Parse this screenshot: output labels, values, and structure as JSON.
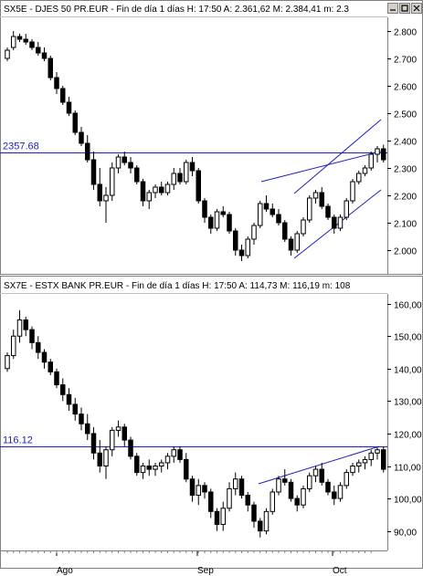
{
  "chart_data": [
    {
      "type": "candlestick",
      "title": "SX5E - DJES 50 PR.EUR - Fin de día 1 días H: 17:50 A: 2.361,62 M: 2.384,41 m: 2.3",
      "y_ticks": [
        "2.800",
        "2.700",
        "2.600",
        "2.500",
        "2.400",
        "2.300",
        "2.200",
        "2.100",
        "2.000"
      ],
      "y_tick_values": [
        2800,
        2700,
        2600,
        2500,
        2400,
        2300,
        2200,
        2100,
        2000
      ],
      "ylim": [
        1920,
        2850
      ],
      "reference_line": {
        "value": 2357.68,
        "label": "2357.68"
      },
      "series": [
        {
          "values": [
            [
              2700,
              2740,
              2690,
              2730
            ],
            [
              2740,
              2800,
              2730,
              2780
            ],
            [
              2780,
              2790,
              2760,
              2770
            ],
            [
              2770,
              2790,
              2750,
              2760
            ],
            [
              2760,
              2770,
              2730,
              2740
            ],
            [
              2740,
              2760,
              2710,
              2720
            ],
            [
              2720,
              2740,
              2690,
              2700
            ],
            [
              2700,
              2710,
              2620,
              2630
            ],
            [
              2630,
              2650,
              2570,
              2590
            ],
            [
              2590,
              2600,
              2530,
              2540
            ],
            [
              2540,
              2560,
              2490,
              2500
            ],
            [
              2500,
              2510,
              2420,
              2430
            ],
            [
              2430,
              2450,
              2380,
              2390
            ],
            [
              2390,
              2420,
              2320,
              2330
            ],
            [
              2330,
              2360,
              2220,
              2240
            ],
            [
              2240,
              2300,
              2160,
              2180
            ],
            [
              2180,
              2230,
              2100,
              2200
            ],
            [
              2200,
              2320,
              2180,
              2300
            ],
            [
              2300,
              2350,
              2280,
              2340
            ],
            [
              2340,
              2360,
              2310,
              2320
            ],
            [
              2320,
              2340,
              2280,
              2300
            ],
            [
              2300,
              2310,
              2240,
              2250
            ],
            [
              2250,
              2260,
              2160,
              2180
            ],
            [
              2180,
              2220,
              2150,
              2210
            ],
            [
              2210,
              2240,
              2190,
              2230
            ],
            [
              2230,
              2250,
              2200,
              2210
            ],
            [
              2210,
              2250,
              2200,
              2240
            ],
            [
              2240,
              2300,
              2220,
              2280
            ],
            [
              2280,
              2300,
              2240,
              2250
            ],
            [
              2250,
              2330,
              2240,
              2320
            ],
            [
              2320,
              2340,
              2270,
              2290
            ],
            [
              2290,
              2300,
              2170,
              2180
            ],
            [
              2180,
              2190,
              2100,
              2120
            ],
            [
              2120,
              2130,
              2060,
              2080
            ],
            [
              2080,
              2150,
              2070,
              2140
            ],
            [
              2140,
              2160,
              2120,
              2130
            ],
            [
              2130,
              2140,
              2060,
              2070
            ],
            [
              2070,
              2080,
              1980,
              2000
            ],
            [
              2000,
              2020,
              1960,
              1980
            ],
            [
              1980,
              2050,
              1970,
              2040
            ],
            [
              2040,
              2100,
              2020,
              2090
            ],
            [
              2090,
              2180,
              2080,
              2170
            ],
            [
              2170,
              2200,
              2140,
              2150
            ],
            [
              2150,
              2170,
              2120,
              2130
            ],
            [
              2130,
              2150,
              2090,
              2100
            ],
            [
              2100,
              2110,
              2030,
              2040
            ],
            [
              2040,
              2050,
              1980,
              2000
            ],
            [
              2000,
              2070,
              1990,
              2060
            ],
            [
              2060,
              2120,
              2050,
              2110
            ],
            [
              2110,
              2200,
              2100,
              2190
            ],
            [
              2190,
              2220,
              2170,
              2210
            ],
            [
              2210,
              2230,
              2150,
              2160
            ],
            [
              2160,
              2170,
              2110,
              2120
            ],
            [
              2120,
              2130,
              2060,
              2080
            ],
            [
              2080,
              2130,
              2070,
              2120
            ],
            [
              2120,
              2190,
              2110,
              2180
            ],
            [
              2180,
              2260,
              2170,
              2250
            ],
            [
              2250,
              2290,
              2240,
              2280
            ],
            [
              2280,
              2310,
              2270,
              2300
            ],
            [
              2300,
              2360,
              2290,
              2350
            ],
            [
              2350,
              2380,
              2320,
              2370
            ],
            [
              2370,
              2385,
              2320,
              2330
            ]
          ]
        }
      ]
    },
    {
      "type": "candlestick",
      "title": "SX7E - ESTX BANK PR.EUR - Fin de día 1 días H: 17:50 A: 114,73 M: 116,19 m: 108",
      "y_ticks": [
        "160,00",
        "150,00",
        "140,00",
        "130,00",
        "120,00",
        "110,00",
        "100,00",
        "90,00"
      ],
      "y_tick_values": [
        160,
        150,
        140,
        130,
        120,
        110,
        100,
        90
      ],
      "ylim": [
        84,
        163
      ],
      "reference_line": {
        "value": 116.12,
        "label": "116.12"
      },
      "x_tick_labels": [
        "Ago",
        "Sep",
        "Oct"
      ],
      "series": [
        {
          "values": [
            [
              140,
              145,
              139,
              144
            ],
            [
              144,
              152,
              143,
              150
            ],
            [
              150,
              158,
              148,
              155
            ],
            [
              155,
              156,
              150,
              152
            ],
            [
              152,
              153,
              146,
              148
            ],
            [
              148,
              150,
              143,
              145
            ],
            [
              145,
              146,
              140,
              142
            ],
            [
              142,
              143,
              138,
              139
            ],
            [
              139,
              140,
              134,
              135
            ],
            [
              135,
              137,
              130,
              132
            ],
            [
              132,
              134,
              127,
              129
            ],
            [
              129,
              131,
              124,
              126
            ],
            [
              126,
              128,
              121,
              123
            ],
            [
              123,
              126,
              118,
              120
            ],
            [
              120,
              122,
              112,
              114
            ],
            [
              114,
              118,
              108,
              110
            ],
            [
              110,
              116,
              106,
              115
            ],
            [
              115,
              122,
              113,
              121
            ],
            [
              121,
              124,
              119,
              122
            ],
            [
              122,
              123,
              116,
              118
            ],
            [
              118,
              119,
              112,
              113
            ],
            [
              113,
              114,
              107,
              108
            ],
            [
              108,
              111,
              106,
              110
            ],
            [
              110,
              112,
              107,
              109
            ],
            [
              109,
              111,
              107,
              110
            ],
            [
              110,
              112,
              108,
              111
            ],
            [
              111,
              114,
              109,
              113
            ],
            [
              113,
              116,
              111,
              115
            ],
            [
              115,
              116,
              111,
              112
            ],
            [
              112,
              114,
              105,
              106
            ],
            [
              106,
              107,
              99,
              101
            ],
            [
              101,
              106,
              98,
              104
            ],
            [
              104,
              105,
              100,
              102
            ],
            [
              102,
              103,
              94,
              96
            ],
            [
              96,
              97,
              90,
              92
            ],
            [
              92,
              99,
              90,
              97
            ],
            [
              97,
              105,
              96,
              103
            ],
            [
              103,
              108,
              101,
              106
            ],
            [
              106,
              107,
              100,
              101
            ],
            [
              101,
              102,
              96,
              98
            ],
            [
              98,
              99,
              91,
              93
            ],
            [
              93,
              94,
              88,
              90
            ],
            [
              90,
              97,
              89,
              96
            ],
            [
              96,
              103,
              95,
              102
            ],
            [
              102,
              107,
              101,
              106
            ],
            [
              106,
              109,
              104,
              105
            ],
            [
              105,
              106,
              99,
              100
            ],
            [
              100,
              101,
              96,
              98
            ],
            [
              98,
              104,
              97,
              103
            ],
            [
              103,
              108,
              102,
              107
            ],
            [
              107,
              110,
              105,
              109
            ],
            [
              109,
              111,
              104,
              105
            ],
            [
              105,
              106,
              101,
              102
            ],
            [
              102,
              104,
              98,
              100
            ],
            [
              100,
              105,
              99,
              104
            ],
            [
              104,
              109,
              103,
              108
            ],
            [
              108,
              111,
              107,
              110
            ],
            [
              110,
              112,
              108,
              111
            ],
            [
              111,
              113,
              109,
              112
            ],
            [
              112,
              115,
              110,
              114
            ],
            [
              114,
              116,
              112,
              115
            ],
            [
              115,
              116,
              108,
              109
            ]
          ]
        }
      ]
    }
  ]
}
